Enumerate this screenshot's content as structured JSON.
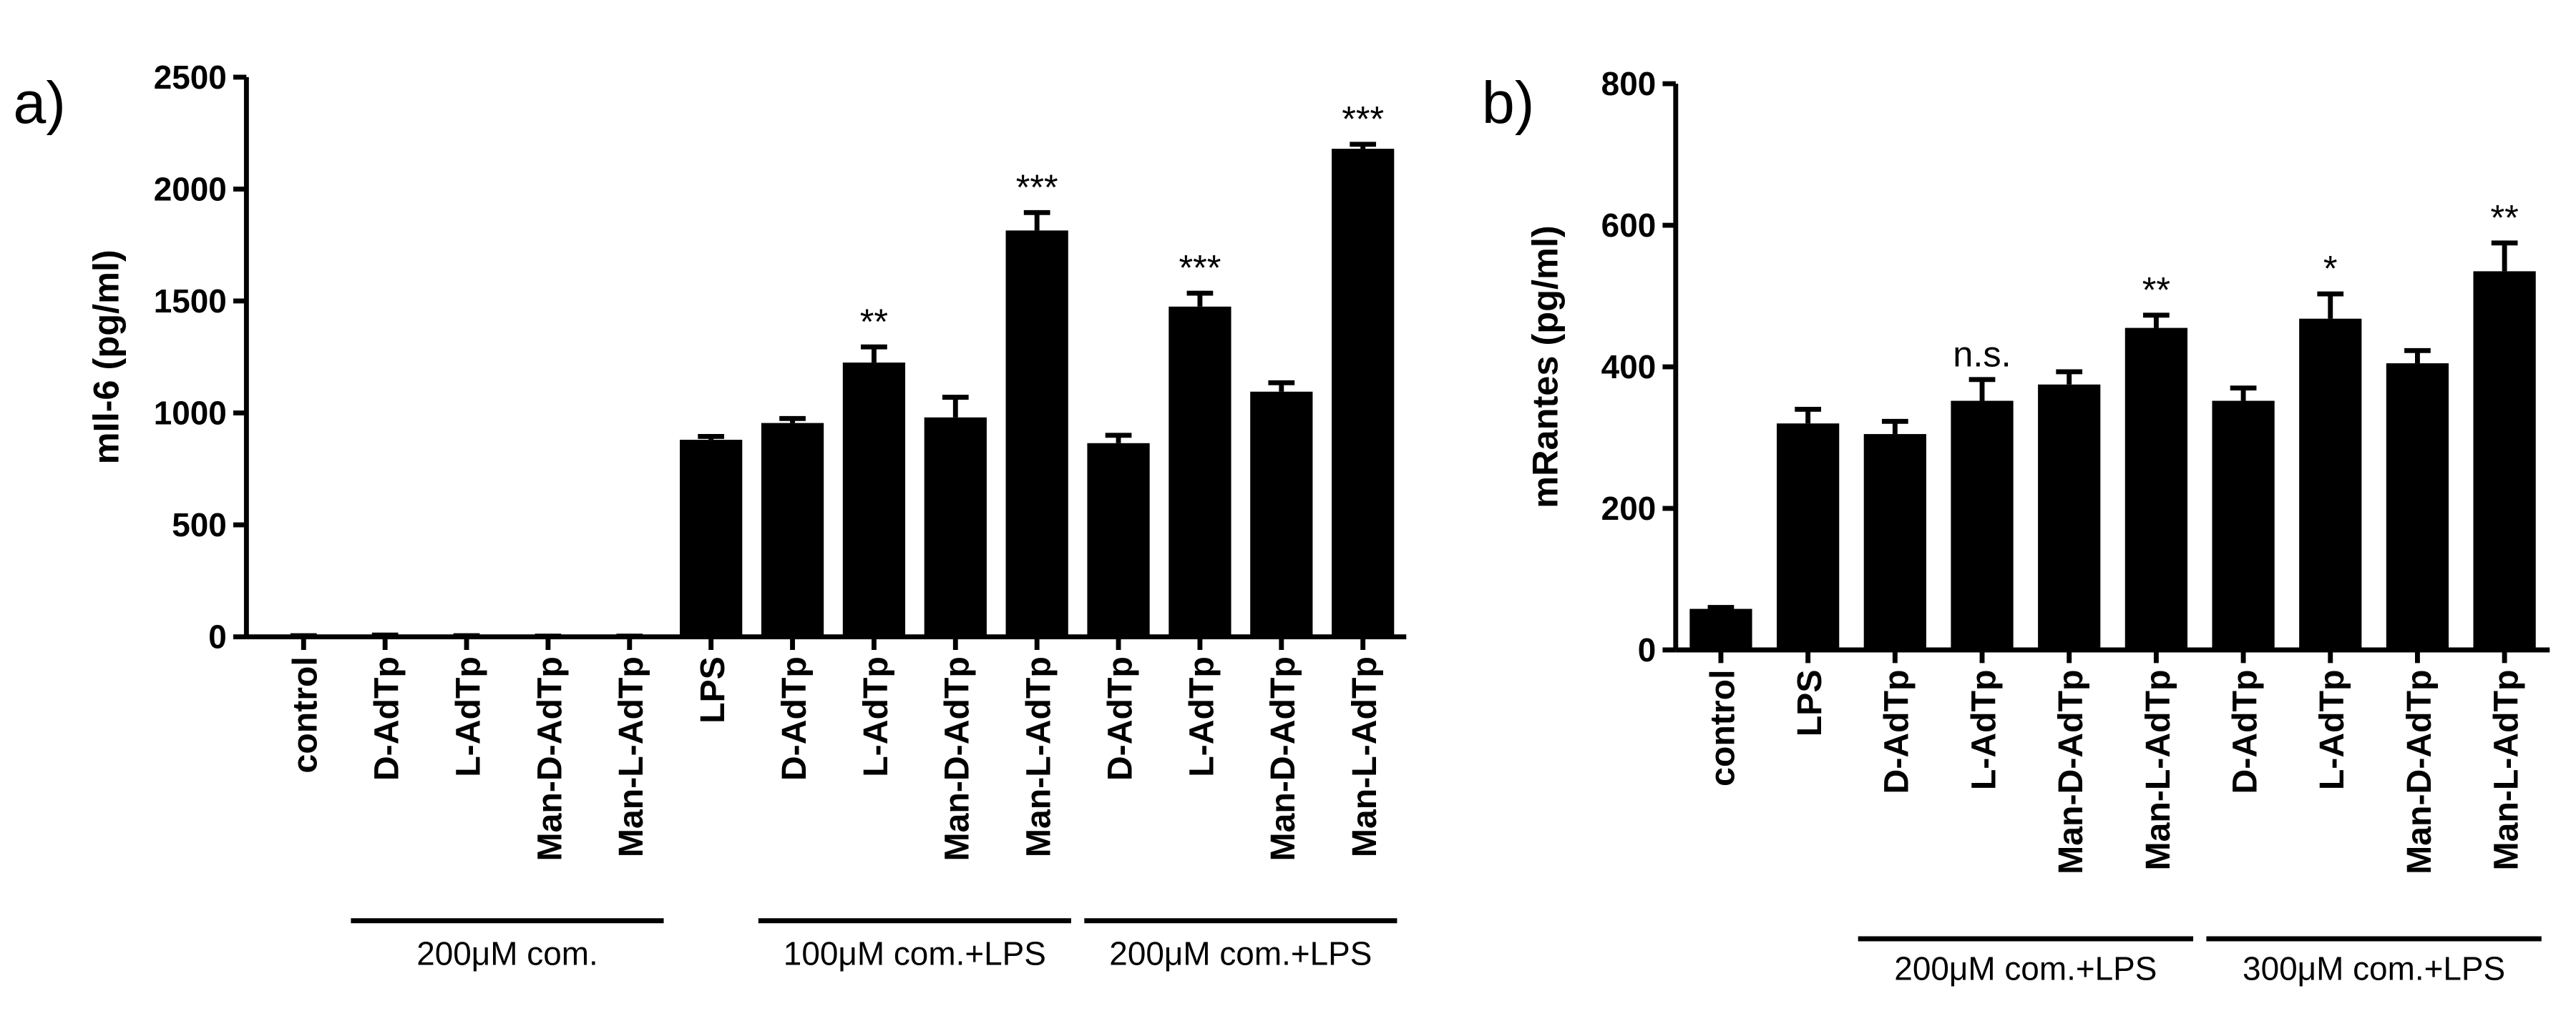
{
  "chart_data": [
    {
      "type": "bar",
      "label": "a)",
      "y_label": "mIl-6 (pg/ml)",
      "categories": [
        "control",
        "D-AdTp",
        "L-AdTp",
        "Man-D-AdTp",
        "Man-L-AdTp",
        "LPS",
        "D-AdTp",
        "L-AdTp",
        "Man-D-AdTp",
        "Man-L-AdTp",
        "D-AdTp",
        "L-AdTp",
        "Man-D-AdTp",
        "Man-L-AdTp"
      ],
      "values": [
        5,
        8,
        5,
        3,
        3,
        880,
        955,
        1225,
        980,
        1815,
        865,
        1475,
        1095,
        2180
      ],
      "errors": [
        0,
        0,
        0,
        0,
        0,
        15,
        20,
        70,
        90,
        80,
        35,
        60,
        40,
        20
      ],
      "annotations": [
        null,
        null,
        null,
        null,
        null,
        null,
        null,
        "**",
        null,
        "***",
        null,
        "***",
        null,
        "***"
      ],
      "category_groups": [
        null,
        "200μM com.",
        "200μM com.",
        "200μM com.",
        "200μM com.",
        null,
        "100μM com.+LPS",
        "100μM com.+LPS",
        "100μM com.+LPS",
        "100μM com.+LPS",
        "200μM com.+LPS",
        "200μM com.+LPS",
        "200μM com.+LPS",
        "200μM com.+LPS"
      ],
      "color": "#000000",
      "ylim": [
        0,
        2500
      ],
      "yticks": [
        0,
        500,
        1000,
        1500,
        2000,
        2500
      ]
    },
    {
      "type": "bar",
      "label": "b)",
      "y_label": "mRantes (pg/ml)",
      "categories": [
        "control",
        "LPS",
        "D-AdTp",
        "L-AdTp",
        "Man-D-AdTp",
        "Man-L-AdTp",
        "D-AdTp",
        "L-AdTp",
        "Man-D-AdTp",
        "Man-L-AdTp"
      ],
      "values": [
        58,
        320,
        305,
        352,
        375,
        455,
        352,
        468,
        405,
        535
      ],
      "errors": [
        2,
        20,
        18,
        30,
        18,
        18,
        18,
        35,
        18,
        40
      ],
      "annotations": [
        null,
        null,
        null,
        "n.s.",
        null,
        "**",
        null,
        "*",
        null,
        "**"
      ],
      "category_groups": [
        null,
        null,
        "200μM com.+LPS",
        "200μM com.+LPS",
        "200μM com.+LPS",
        "200μM com.+LPS",
        "300μM com.+LPS",
        "300μM com.+LPS",
        "300μM com.+LPS",
        "300μM com.+LPS"
      ],
      "color": "#000000",
      "ylim": [
        0,
        800
      ],
      "yticks": [
        0,
        200,
        400,
        600,
        800
      ]
    }
  ]
}
